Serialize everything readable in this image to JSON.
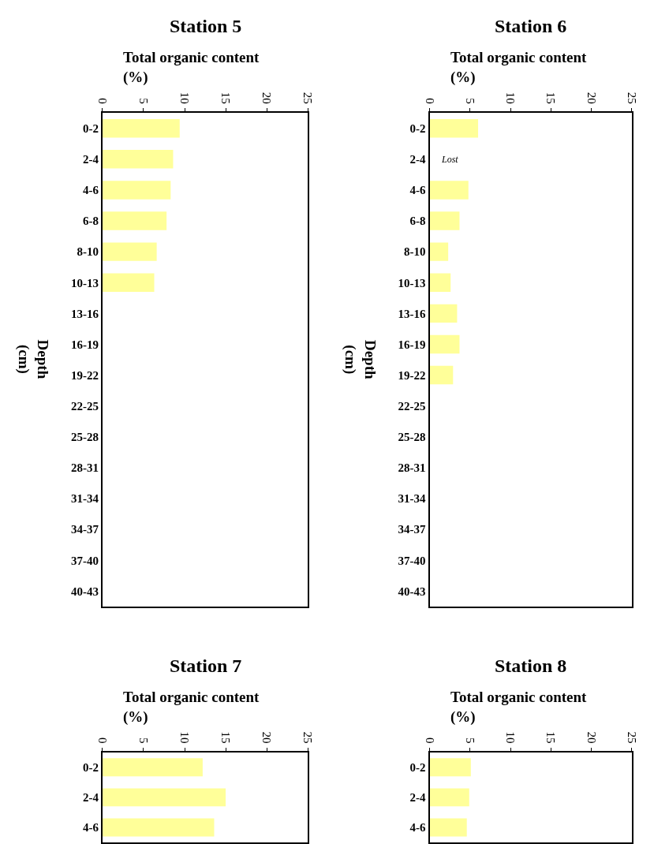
{
  "chart_data": [
    {
      "type": "bar",
      "orientation": "horizontal",
      "title": "Station 5",
      "xlabel": "Total organic content\n(%)",
      "ylabel": "Depth\n(cm)",
      "color": "#ffff99",
      "xlim": [
        0,
        25
      ],
      "xticks": [
        0,
        5,
        10,
        15,
        20,
        25
      ],
      "categories": [
        "0-2",
        "2-4",
        "4-6",
        "6-8",
        "8-10",
        "10-13",
        "13-16",
        "16-19",
        "19-22",
        "22-25",
        "25-28",
        "28-31",
        "31-34",
        "34-37",
        "37-40",
        "40-43"
      ],
      "values": [
        9.4,
        8.6,
        8.3,
        7.8,
        6.6,
        6.3,
        null,
        null,
        null,
        null,
        null,
        null,
        null,
        null,
        null,
        null
      ]
    },
    {
      "type": "bar",
      "orientation": "horizontal",
      "title": "Station 6",
      "xlabel": "Total organic content\n(%)",
      "ylabel": "Depth\n(cm)",
      "color": "#ffff99",
      "xlim": [
        0,
        25
      ],
      "xticks": [
        0,
        5,
        10,
        15,
        20,
        25
      ],
      "categories": [
        "0-2",
        "2-4",
        "4-6",
        "6-8",
        "8-10",
        "10-13",
        "13-16",
        "16-19",
        "19-22",
        "22-25",
        "25-28",
        "28-31",
        "31-34",
        "34-37",
        "37-40",
        "40-43"
      ],
      "values": [
        6.0,
        null,
        4.8,
        3.7,
        2.3,
        2.6,
        3.4,
        3.7,
        2.9,
        null,
        null,
        null,
        null,
        null,
        null,
        null
      ],
      "annotations": [
        "Lost"
      ]
    },
    {
      "type": "bar",
      "orientation": "horizontal",
      "title": "Station 7",
      "xlabel": "Total organic content\n(%)",
      "color": "#ffff99",
      "xlim": [
        0,
        25
      ],
      "xticks": [
        0,
        5,
        10,
        15,
        20,
        25
      ],
      "categories": [
        "0-2",
        "2-4",
        "4-6"
      ],
      "values": [
        12.2,
        15.0,
        13.6
      ]
    },
    {
      "type": "bar",
      "orientation": "horizontal",
      "title": "Station 8",
      "xlabel": "Total organic content\n(%)",
      "color": "#ffff99",
      "xlim": [
        0,
        25
      ],
      "xticks": [
        0,
        5,
        10,
        15,
        20,
        25
      ],
      "categories": [
        "0-2",
        "2-4",
        "4-6"
      ],
      "values": [
        5.1,
        4.9,
        4.6
      ]
    }
  ]
}
